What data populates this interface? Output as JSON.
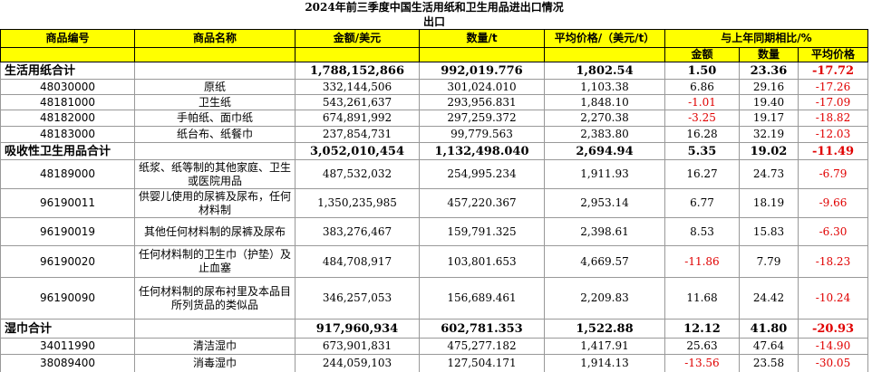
{
  "title": "2024年前三季度中国生活用纸和卫生用品进出口情况",
  "subtitle": "出口",
  "table": {
    "header": [
      "商品编号",
      "商品名称",
      "金额/美元",
      "数量/t",
      "平均价格/（美元/t）",
      "与上年同期相比/%"
    ],
    "subheader": [
      "金额",
      "数量",
      "平均价格"
    ],
    "rows": [
      [
        "生活用纸合计",
        "1,788,152,866",
        "992,019.776",
        "1,802.54",
        "1.50",
        "23.36",
        "-17.72"
      ],
      [
        "48030000",
        "原纸",
        "332,144,506",
        "301,024.010",
        "1,103.38",
        "6.86",
        "29.16",
        "-17.26"
      ],
      [
        "48181000",
        "卫生纸",
        "543,261,637",
        "293,956.831",
        "1,848.10",
        "-1.01",
        "19.40",
        "-17.09"
      ],
      [
        "48182000",
        "手帕纸、面巾纸",
        "674,891,992",
        "297,259.372",
        "2,270.38",
        "-3.25",
        "19.17",
        "-18.82"
      ],
      [
        "48183000",
        "纸台布、纸餐巾",
        "237,854,731",
        "99,779.563",
        "2,383.80",
        "16.28",
        "32.19",
        "-12.03"
      ],
      [
        "吸收性卫生用品合计",
        "3,052,010,454",
        "1,132,498.040",
        "2,694.94",
        "5.35",
        "19.02",
        "-11.49"
      ],
      [
        "48189000",
        "纸浆、纸等制的其他家庭、卫生或医院用品",
        "487,532,032",
        "254,995.234",
        "1,911.93",
        "16.27",
        "24.73",
        "-6.79"
      ],
      [
        "96190011",
        "供婴儿使用的尿裤及尿布，任何材料制",
        "1,350,235,985",
        "457,220.367",
        "2,953.14",
        "6.77",
        "18.19",
        "-9.66"
      ],
      [
        "96190019",
        "其他任何材料制的尿裤及尿布",
        "383,276,467",
        "159,791.325",
        "2,398.61",
        "8.53",
        "15.83",
        "-6.30"
      ],
      [
        "96190020",
        "任何材料制的卫生巾（护垫）及止血塞",
        "484,708,917",
        "103,801.653",
        "4,669.57",
        "-11.86",
        "7.79",
        "-18.23"
      ],
      [
        "96190090",
        "任何材料制的尿布衬里及本品目所列货品的类似品",
        "346,257,053",
        "156,689.461",
        "2,209.83",
        "11.68",
        "24.42",
        "-10.24"
      ],
      [
        "湿巾合计",
        "917,960,934",
        "602,781.353",
        "1,522.88",
        "12.12",
        "41.80",
        "-20.93"
      ],
      [
        "34011990",
        "清洁湿巾",
        "673,901,831",
        "475,277.182",
        "1,417.91",
        "25.63",
        "47.64",
        "-14.90"
      ],
      [
        "38089400",
        "消毒湿巾",
        "244,059,103",
        "127,504.171",
        "1,914.13",
        "-13.56",
        "23.58",
        "-30.05"
      ]
    ]
  }
}
